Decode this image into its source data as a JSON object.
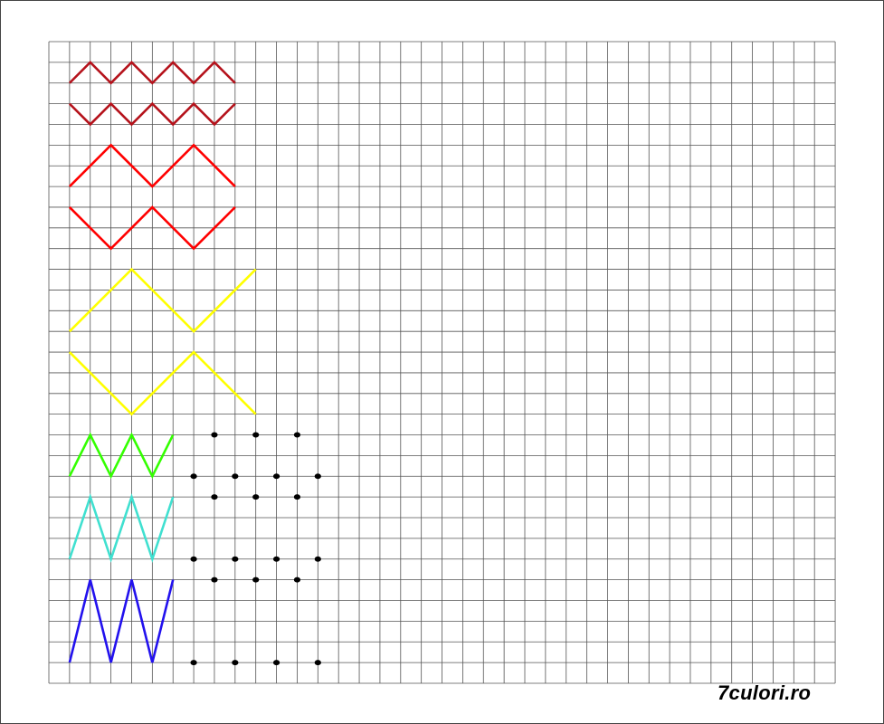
{
  "worksheet": {
    "grid": {
      "columns": 38,
      "rows": 31,
      "line_color": "#555555"
    },
    "pattern_colors": {
      "dark_red": "#b5121b",
      "red": "#ff0000",
      "yellow": "#ffff00",
      "green": "#33ff00",
      "turquoise": "#40e0d0",
      "blue": "#2211ee",
      "dots": "#000000"
    },
    "watermark": "7culori.ro"
  }
}
